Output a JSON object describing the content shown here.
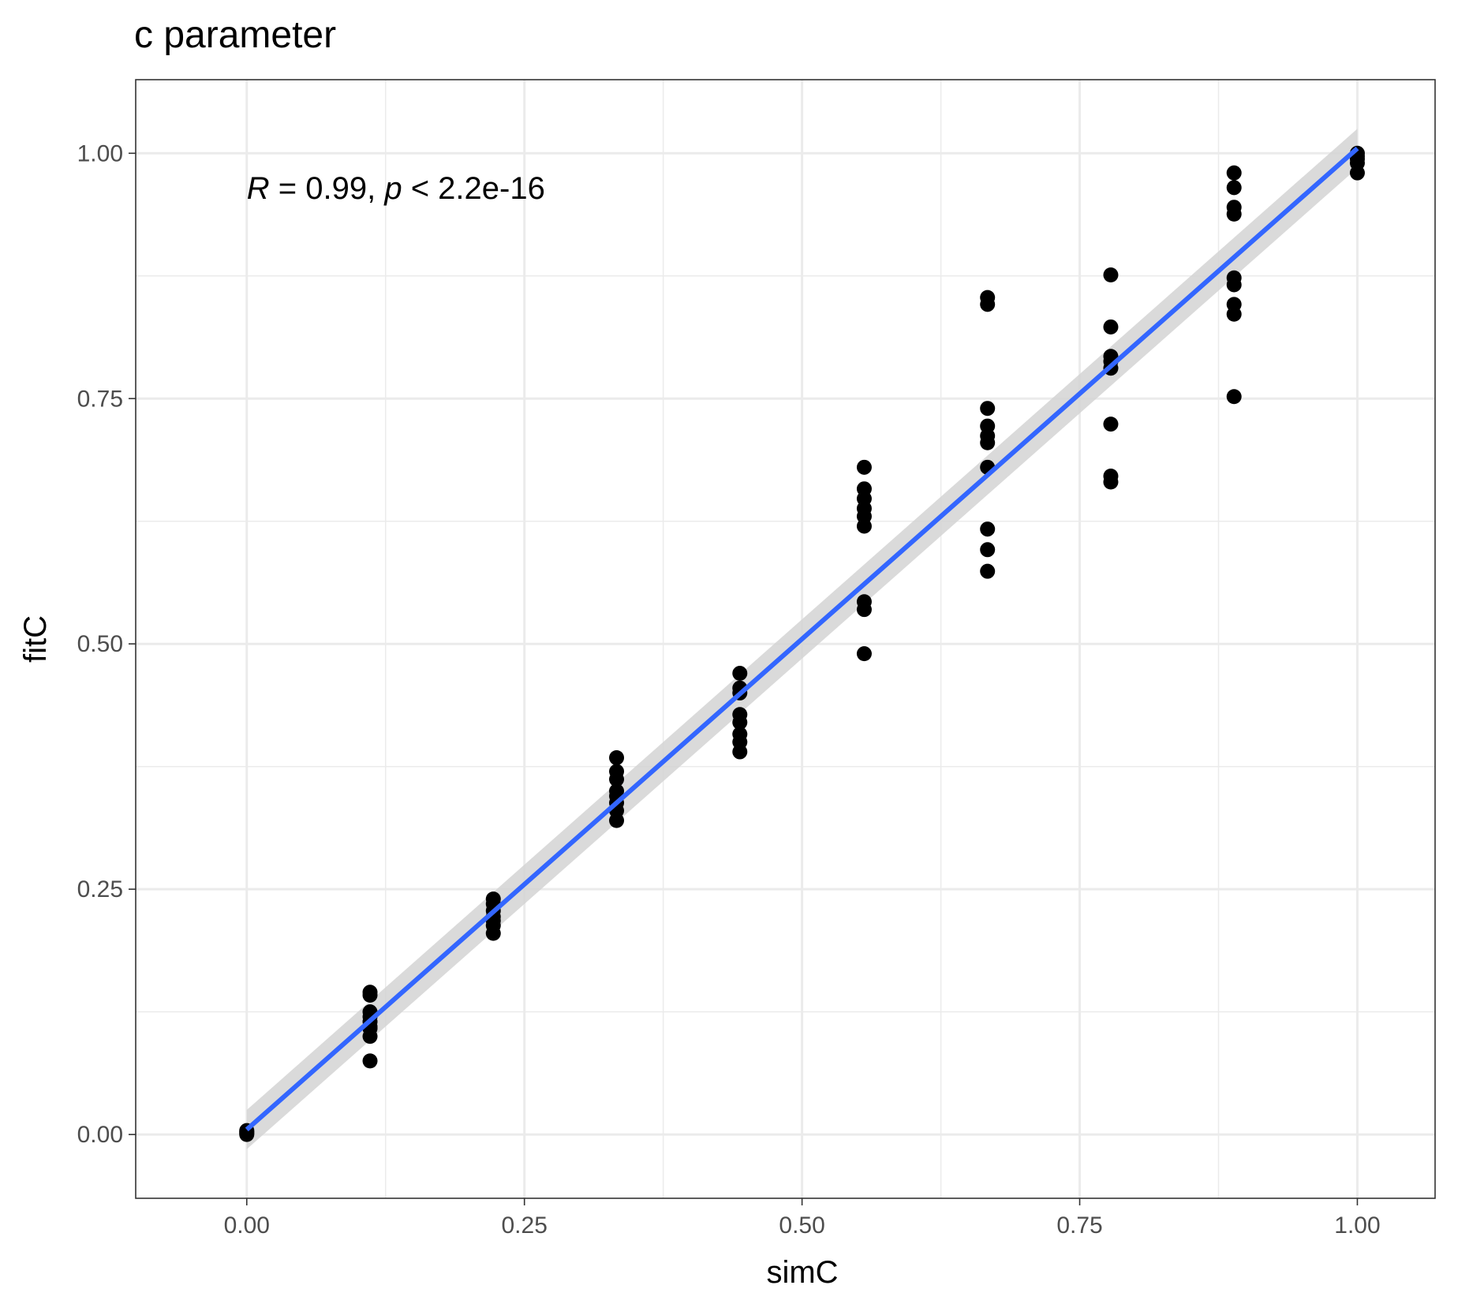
{
  "chart_data": {
    "type": "scatter",
    "title": "c parameter",
    "xlabel": "simC",
    "ylabel": "fitC",
    "xlim": [
      -0.1,
      1.07
    ],
    "ylim": [
      -0.065,
      1.075
    ],
    "x_ticks": [
      0.0,
      0.25,
      0.5,
      0.75,
      1.0
    ],
    "x_tick_labels": [
      "0.00",
      "0.25",
      "0.50",
      "0.75",
      "1.00"
    ],
    "y_ticks": [
      0.0,
      0.25,
      0.5,
      0.75,
      1.0
    ],
    "y_tick_labels": [
      "0.00",
      "0.25",
      "0.50",
      "0.75",
      "1.00"
    ],
    "grid": true,
    "annotation": {
      "r_symbol": "R",
      "r_text": " = 0.99, ",
      "p_symbol": "p",
      "p_text": " < 2.2e-16",
      "x": 0.0,
      "y": 0.965
    },
    "points": [
      [
        0.0,
        0.0
      ],
      [
        0.0,
        0.002
      ],
      [
        0.0,
        0.004
      ],
      [
        0.0,
        0.001
      ],
      [
        0.0,
        0.003
      ],
      [
        0.111,
        0.145
      ],
      [
        0.111,
        0.142
      ],
      [
        0.111,
        0.125
      ],
      [
        0.111,
        0.12
      ],
      [
        0.111,
        0.115
      ],
      [
        0.111,
        0.11
      ],
      [
        0.111,
        0.108
      ],
      [
        0.111,
        0.1
      ],
      [
        0.111,
        0.075
      ],
      [
        0.222,
        0.24
      ],
      [
        0.222,
        0.235
      ],
      [
        0.222,
        0.228
      ],
      [
        0.222,
        0.222
      ],
      [
        0.222,
        0.218
      ],
      [
        0.222,
        0.213
      ],
      [
        0.222,
        0.205
      ],
      [
        0.333,
        0.384
      ],
      [
        0.333,
        0.37
      ],
      [
        0.333,
        0.362
      ],
      [
        0.333,
        0.35
      ],
      [
        0.333,
        0.345
      ],
      [
        0.333,
        0.338
      ],
      [
        0.333,
        0.33
      ],
      [
        0.333,
        0.32
      ],
      [
        0.444,
        0.47
      ],
      [
        0.444,
        0.455
      ],
      [
        0.444,
        0.45
      ],
      [
        0.444,
        0.428
      ],
      [
        0.444,
        0.42
      ],
      [
        0.444,
        0.408
      ],
      [
        0.444,
        0.4
      ],
      [
        0.444,
        0.39
      ],
      [
        0.556,
        0.68
      ],
      [
        0.556,
        0.658
      ],
      [
        0.556,
        0.648
      ],
      [
        0.556,
        0.638
      ],
      [
        0.556,
        0.63
      ],
      [
        0.556,
        0.62
      ],
      [
        0.556,
        0.543
      ],
      [
        0.556,
        0.535
      ],
      [
        0.556,
        0.49
      ],
      [
        0.667,
        0.853
      ],
      [
        0.667,
        0.846
      ],
      [
        0.667,
        0.74
      ],
      [
        0.667,
        0.722
      ],
      [
        0.667,
        0.712
      ],
      [
        0.667,
        0.705
      ],
      [
        0.667,
        0.68
      ],
      [
        0.667,
        0.617
      ],
      [
        0.667,
        0.596
      ],
      [
        0.667,
        0.574
      ],
      [
        0.778,
        0.876
      ],
      [
        0.778,
        0.823
      ],
      [
        0.778,
        0.793
      ],
      [
        0.778,
        0.788
      ],
      [
        0.778,
        0.781
      ],
      [
        0.778,
        0.724
      ],
      [
        0.778,
        0.671
      ],
      [
        0.778,
        0.665
      ],
      [
        0.889,
        0.98
      ],
      [
        0.889,
        0.965
      ],
      [
        0.889,
        0.945
      ],
      [
        0.889,
        0.938
      ],
      [
        0.889,
        0.873
      ],
      [
        0.889,
        0.866
      ],
      [
        0.889,
        0.846
      ],
      [
        0.889,
        0.836
      ],
      [
        0.889,
        0.752
      ],
      [
        1.0,
        1.0
      ],
      [
        1.0,
        0.997
      ],
      [
        1.0,
        0.994
      ],
      [
        1.0,
        0.99
      ],
      [
        1.0,
        0.98
      ]
    ],
    "fit_line": {
      "x": [
        0.0,
        1.0
      ],
      "y": [
        0.005,
        1.005
      ]
    },
    "confidence_band": {
      "x": [
        0.0,
        1.0
      ],
      "lower": [
        -0.015,
        0.985
      ],
      "upper": [
        0.025,
        1.025
      ]
    },
    "colors": {
      "points": "#000000",
      "fit_line": "#3366ff",
      "band": "#d3d3d3",
      "grid": "#ebebeb",
      "panel_border": "#333333"
    }
  }
}
